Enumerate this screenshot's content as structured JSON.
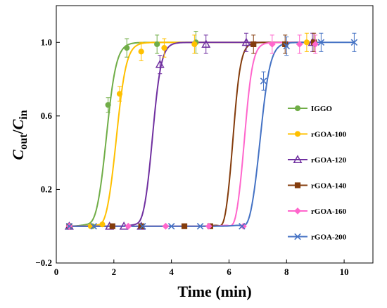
{
  "chart_data": {
    "type": "scatter",
    "xlabel": "Time (min)",
    "ylabel_main": "C",
    "ylabel_sub1": "out",
    "ylabel_slash": "/",
    "ylabel_main2": "C",
    "ylabel_sub2": "in",
    "xlim": [
      0,
      11
    ],
    "ylim": [
      -0.2,
      1.2
    ],
    "x_ticks": [
      0,
      2,
      4,
      6,
      8,
      10
    ],
    "y_ticks": [
      -0.2,
      0.2,
      0.6,
      1.0
    ],
    "x_tick_labels": [
      "0",
      "2",
      "4",
      "6",
      "8",
      "10"
    ],
    "y_tick_labels": [
      "−0.2",
      "0.2",
      "0.6",
      "1.0"
    ],
    "legend_position": "right",
    "grid": false,
    "series": [
      {
        "name": "IGGO",
        "color": "#70AD47",
        "marker": "circle",
        "points": [
          [
            0.45,
            0
          ],
          [
            1.25,
            0
          ],
          [
            1.8,
            0.66
          ],
          [
            2.45,
            0.97
          ],
          [
            3.5,
            0.99
          ],
          [
            4.85,
            1.0
          ]
        ],
        "errors": [
          0.02,
          0.02,
          0.04,
          0.05,
          0.05,
          0.06
        ],
        "fit": {
          "t0": 1.75,
          "w": 0.17,
          "y0": -0.01
        }
      },
      {
        "name": "rGOA-100",
        "color": "#FFC000",
        "marker": "circle",
        "points": [
          [
            0.45,
            0
          ],
          [
            1.2,
            0
          ],
          [
            1.6,
            0.01
          ],
          [
            2.2,
            0.72
          ],
          [
            2.95,
            0.95
          ],
          [
            3.75,
            0.97
          ],
          [
            4.8,
            0.99
          ],
          [
            8.7,
            1.0
          ]
        ],
        "errors": [
          0.02,
          0.02,
          0.02,
          0.04,
          0.05,
          0.05,
          0.05,
          0.05
        ],
        "fit": {
          "t0": 2.1,
          "w": 0.17,
          "y0": -0.015
        }
      },
      {
        "name": "rGOA-120",
        "color": "#7030A0",
        "marker": "triangle",
        "points": [
          [
            0.45,
            0
          ],
          [
            1.85,
            0
          ],
          [
            2.35,
            0
          ],
          [
            2.95,
            0
          ],
          [
            3.6,
            0.88
          ],
          [
            5.2,
            0.99
          ],
          [
            6.6,
            1.0
          ],
          [
            8.9,
            1.0
          ]
        ],
        "errors": [
          0.02,
          0.02,
          0.02,
          0.02,
          0.05,
          0.05,
          0.05,
          0.05
        ],
        "fit": {
          "t0": 3.35,
          "w": 0.15,
          "y0": -0.01
        }
      },
      {
        "name": "rGOA-140",
        "color": "#843C0C",
        "marker": "square",
        "points": [
          [
            0.45,
            0
          ],
          [
            1.95,
            0
          ],
          [
            2.95,
            0
          ],
          [
            4.45,
            0
          ],
          [
            5.35,
            0
          ],
          [
            6.85,
            0.99
          ],
          [
            7.95,
            0.99
          ],
          [
            8.95,
            1.0
          ]
        ],
        "errors": [
          0.02,
          0.02,
          0.02,
          0.02,
          0.02,
          0.05,
          0.05,
          0.05
        ],
        "fit": {
          "t0": 6.15,
          "w": 0.13,
          "y0": -0.02
        }
      },
      {
        "name": "rGOA-160",
        "color": "#FF66CC",
        "marker": "diamond",
        "points": [
          [
            0.45,
            0
          ],
          [
            2.5,
            0
          ],
          [
            3.8,
            0
          ],
          [
            5.3,
            0
          ],
          [
            6.5,
            0
          ],
          [
            7.5,
            0.99
          ],
          [
            8.45,
            0.99
          ],
          [
            9.0,
            0.99
          ]
        ],
        "errors": [
          0.02,
          0.02,
          0.02,
          0.02,
          0.02,
          0.05,
          0.05,
          0.05
        ],
        "fit": {
          "t0": 6.55,
          "w": 0.14,
          "y0": -0.02
        }
      },
      {
        "name": "rGOA-200",
        "color": "#4472C4",
        "marker": "x",
        "points": [
          [
            0.45,
            0
          ],
          [
            1.3,
            0
          ],
          [
            3.0,
            0
          ],
          [
            4.0,
            0
          ],
          [
            5.0,
            0
          ],
          [
            6.45,
            0
          ],
          [
            7.2,
            0.79
          ],
          [
            8.0,
            0.98
          ],
          [
            9.2,
            1.0
          ],
          [
            10.35,
            1.0
          ]
        ],
        "errors": [
          0.02,
          0.02,
          0.02,
          0.02,
          0.02,
          0.02,
          0.05,
          0.05,
          0.05,
          0.05
        ],
        "fit": {
          "t0": 7.1,
          "w": 0.17,
          "y0": -0.02
        }
      }
    ]
  }
}
